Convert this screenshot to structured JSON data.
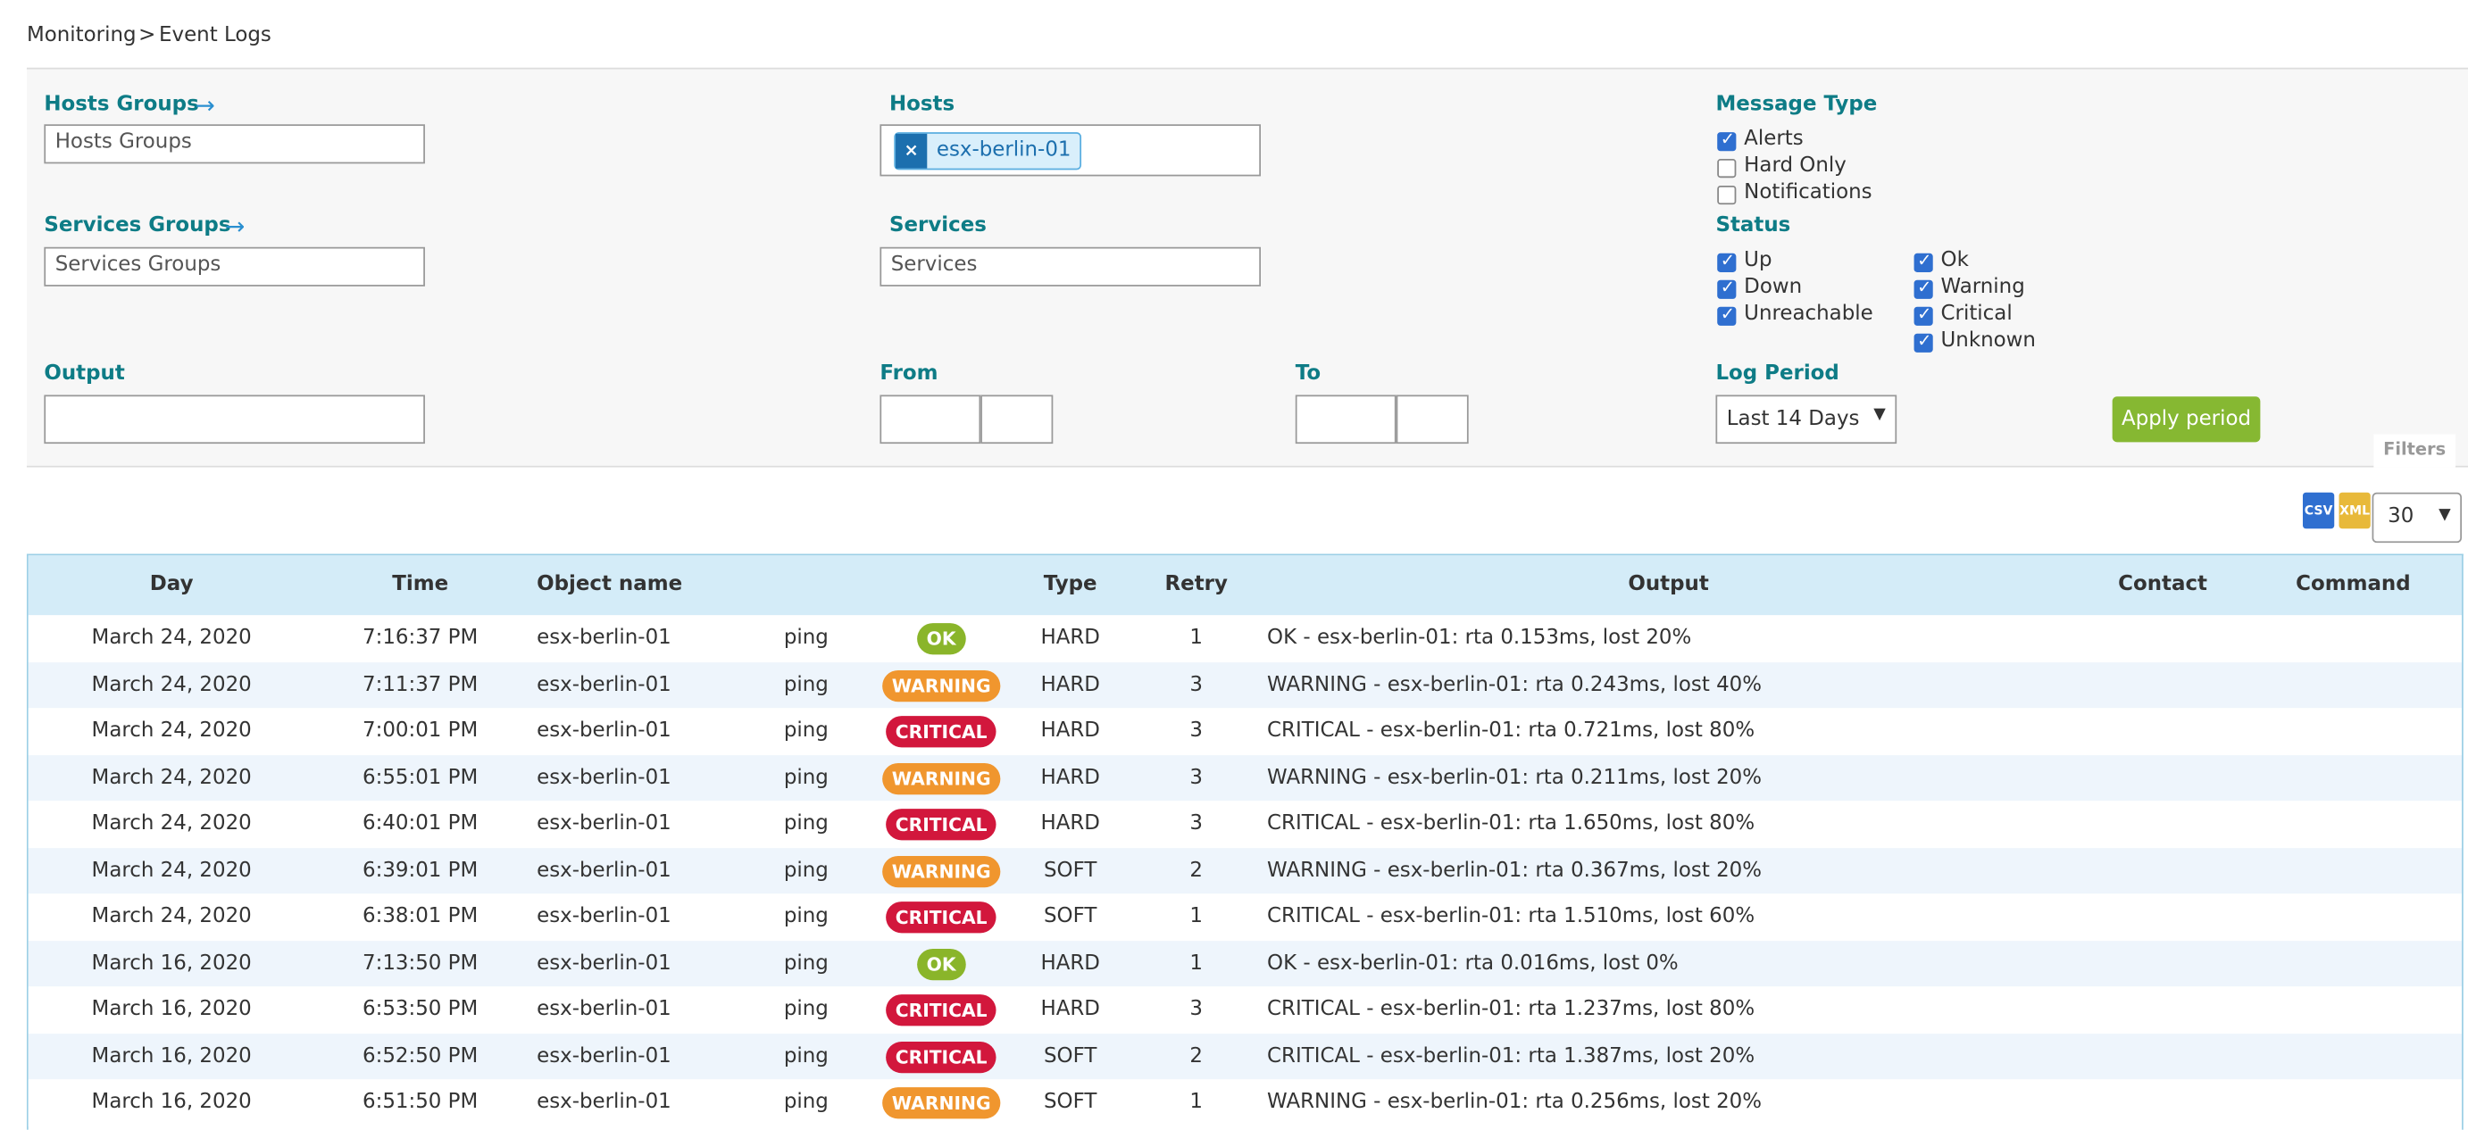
{
  "breadcrumb": {
    "items": [
      "Monitoring",
      "Event Logs"
    ],
    "separator": ">"
  },
  "filters": {
    "hosts_groups": {
      "label": "Hosts Groups",
      "placeholder": "Hosts Groups"
    },
    "hosts": {
      "label": "Hosts",
      "selected": [
        "esx-berlin-01"
      ]
    },
    "message_type": {
      "label": "Message Type",
      "options": [
        {
          "label": "Alerts",
          "checked": true
        },
        {
          "label": "Hard Only",
          "checked": false
        },
        {
          "label": "Notifications",
          "checked": false
        }
      ]
    },
    "services_groups": {
      "label": "Services Groups",
      "placeholder": "Services Groups"
    },
    "services": {
      "label": "Services",
      "placeholder": "Services"
    },
    "status": {
      "label": "Status",
      "host_options": [
        {
          "label": "Up",
          "checked": true
        },
        {
          "label": "Down",
          "checked": true
        },
        {
          "label": "Unreachable",
          "checked": true
        }
      ],
      "service_options": [
        {
          "label": "Ok",
          "checked": true
        },
        {
          "label": "Warning",
          "checked": true
        },
        {
          "label": "Critical",
          "checked": true
        },
        {
          "label": "Unknown",
          "checked": true
        }
      ]
    },
    "output": {
      "label": "Output"
    },
    "from": {
      "label": "From"
    },
    "to": {
      "label": "To"
    },
    "log_period": {
      "label": "Log Period",
      "value": "Last 14 Days"
    },
    "apply_button": "Apply period",
    "tab": "Filters"
  },
  "export": [
    "CSV",
    "XML"
  ],
  "page_size": "30",
  "table": {
    "headers": {
      "day": "Day",
      "time": "Time",
      "object_name": "Object name",
      "type": "Type",
      "retry": "Retry",
      "output": "Output",
      "contact": "Contact",
      "command": "Command"
    },
    "rows": [
      [
        "March 24, 2020",
        "7:16:37 PM",
        "esx-berlin-01",
        "ping",
        "OK",
        "HARD",
        "1",
        "OK - esx-berlin-01: rta 0.153ms, lost 20%"
      ],
      [
        "March 24, 2020",
        "7:11:37 PM",
        "esx-berlin-01",
        "ping",
        "WARNING",
        "HARD",
        "3",
        "WARNING - esx-berlin-01: rta 0.243ms, lost 40%"
      ],
      [
        "March 24, 2020",
        "7:00:01 PM",
        "esx-berlin-01",
        "ping",
        "CRITICAL",
        "HARD",
        "3",
        "CRITICAL - esx-berlin-01: rta 0.721ms, lost 80%"
      ],
      [
        "March 24, 2020",
        "6:55:01 PM",
        "esx-berlin-01",
        "ping",
        "WARNING",
        "HARD",
        "3",
        "WARNING - esx-berlin-01: rta 0.211ms, lost 20%"
      ],
      [
        "March 24, 2020",
        "6:40:01 PM",
        "esx-berlin-01",
        "ping",
        "CRITICAL",
        "HARD",
        "3",
        "CRITICAL - esx-berlin-01: rta 1.650ms, lost 80%"
      ],
      [
        "March 24, 2020",
        "6:39:01 PM",
        "esx-berlin-01",
        "ping",
        "WARNING",
        "SOFT",
        "2",
        "WARNING - esx-berlin-01: rta 0.367ms, lost 20%"
      ],
      [
        "March 24, 2020",
        "6:38:01 PM",
        "esx-berlin-01",
        "ping",
        "CRITICAL",
        "SOFT",
        "1",
        "CRITICAL - esx-berlin-01: rta 1.510ms, lost 60%"
      ],
      [
        "March 16, 2020",
        "7:13:50 PM",
        "esx-berlin-01",
        "ping",
        "OK",
        "HARD",
        "1",
        "OK - esx-berlin-01: rta 0.016ms, lost 0%"
      ],
      [
        "March 16, 2020",
        "6:53:50 PM",
        "esx-berlin-01",
        "ping",
        "CRITICAL",
        "HARD",
        "3",
        "CRITICAL - esx-berlin-01: rta 1.237ms, lost 80%"
      ],
      [
        "March 16, 2020",
        "6:52:50 PM",
        "esx-berlin-01",
        "ping",
        "CRITICAL",
        "SOFT",
        "2",
        "CRITICAL - esx-berlin-01: rta 1.387ms, lost 20%"
      ],
      [
        "March 16, 2020",
        "6:51:50 PM",
        "esx-berlin-01",
        "ping",
        "WARNING",
        "SOFT",
        "1",
        "WARNING - esx-berlin-01: rta 0.256ms, lost 20%"
      ]
    ]
  }
}
